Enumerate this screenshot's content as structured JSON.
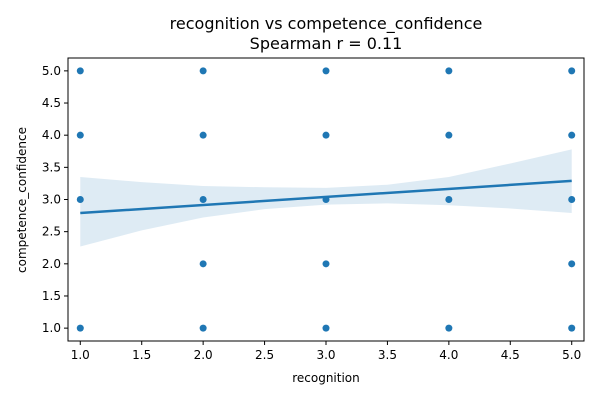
{
  "chart_data": {
    "type": "scatter",
    "title": "recognition vs competence_confidence",
    "subtitle": "Spearman r = 0.11",
    "xlabel": "recognition",
    "ylabel": "competence_confidence",
    "xlim": [
      0.9,
      5.1
    ],
    "ylim": [
      0.8,
      5.2
    ],
    "xticks": [
      1.0,
      1.5,
      2.0,
      2.5,
      3.0,
      3.5,
      4.0,
      4.5,
      5.0
    ],
    "yticks": [
      1.0,
      1.5,
      2.0,
      2.5,
      3.0,
      3.5,
      4.0,
      4.5,
      5.0
    ],
    "xtick_labels": [
      "1.0",
      "1.5",
      "2.0",
      "2.5",
      "3.0",
      "3.5",
      "4.0",
      "4.5",
      "5.0"
    ],
    "ytick_labels": [
      "1.0",
      "1.5",
      "2.0",
      "2.5",
      "3.0",
      "3.5",
      "4.0",
      "4.5",
      "5.0"
    ],
    "grid": false,
    "points": [
      {
        "x": 1,
        "y": 1
      },
      {
        "x": 1,
        "y": 3
      },
      {
        "x": 1,
        "y": 4
      },
      {
        "x": 1,
        "y": 5
      },
      {
        "x": 2,
        "y": 1
      },
      {
        "x": 2,
        "y": 2
      },
      {
        "x": 2,
        "y": 3
      },
      {
        "x": 2,
        "y": 4
      },
      {
        "x": 2,
        "y": 5
      },
      {
        "x": 3,
        "y": 1
      },
      {
        "x": 3,
        "y": 2
      },
      {
        "x": 3,
        "y": 3
      },
      {
        "x": 3,
        "y": 4
      },
      {
        "x": 3,
        "y": 5
      },
      {
        "x": 4,
        "y": 1
      },
      {
        "x": 4,
        "y": 3
      },
      {
        "x": 4,
        "y": 4
      },
      {
        "x": 4,
        "y": 5
      },
      {
        "x": 5,
        "y": 1
      },
      {
        "x": 5,
        "y": 2
      },
      {
        "x": 5,
        "y": 3
      },
      {
        "x": 5,
        "y": 4
      },
      {
        "x": 5,
        "y": 5
      }
    ],
    "regression": {
      "x": [
        1.0,
        5.0
      ],
      "y": [
        2.79,
        3.29
      ]
    },
    "confidence_band": {
      "x": [
        1.0,
        1.5,
        2.0,
        2.5,
        3.0,
        3.5,
        4.0,
        4.5,
        5.0
      ],
      "lower": [
        2.27,
        2.52,
        2.72,
        2.85,
        2.92,
        2.94,
        2.91,
        2.86,
        2.79
      ],
      "upper": [
        3.35,
        3.27,
        3.21,
        3.19,
        3.18,
        3.23,
        3.35,
        3.56,
        3.78
      ]
    },
    "colors": {
      "points": "#1f77b4",
      "line": "#1f77b4",
      "band": "#1f77b4"
    }
  }
}
